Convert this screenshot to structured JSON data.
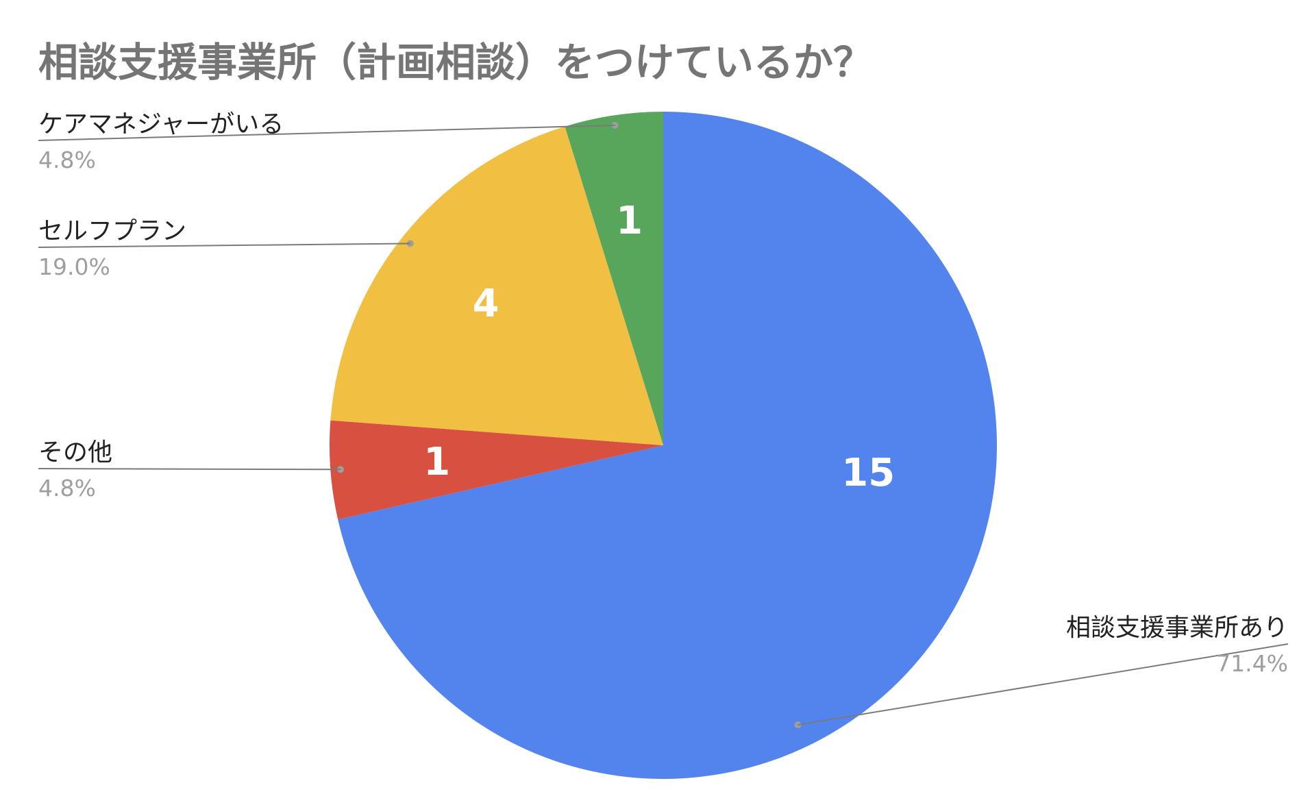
{
  "chart_data": {
    "type": "pie",
    "title": "相談支援事業所（計画相談）をつけているか？",
    "slices": [
      {
        "label": "相談支援事業所あり",
        "value": 15,
        "percent": "71.4%",
        "color": "#5383EC"
      },
      {
        "label": "その他",
        "value": 1,
        "percent": "4.8%",
        "color": "#D85040"
      },
      {
        "label": "セルフプラン",
        "value": 4,
        "percent": "19.0%",
        "color": "#F1BF42"
      },
      {
        "label": "ケアマネジャーがいる",
        "value": 1,
        "percent": "4.8%",
        "color": "#58A65C"
      }
    ],
    "start_angle_deg": 0,
    "direction": "clockwise",
    "slice_labels": "values",
    "legend": "callouts"
  }
}
